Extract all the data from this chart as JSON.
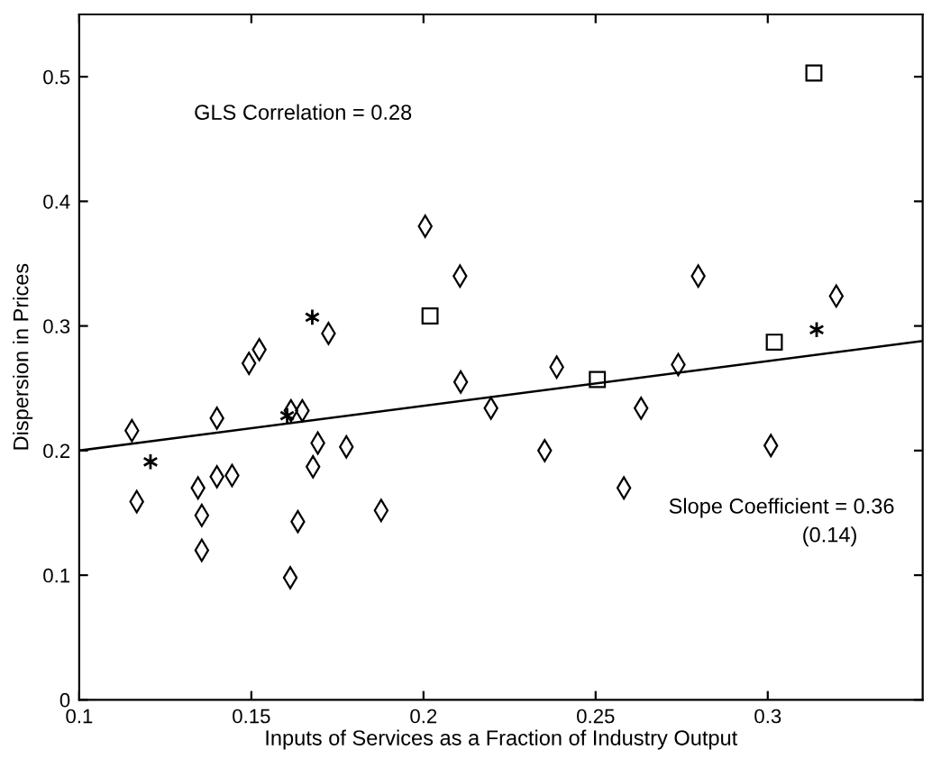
{
  "chart_data": {
    "type": "scatter",
    "xlabel": "Inputs of Services as a Fraction of Industry Output",
    "ylabel": "Dispersion in Prices",
    "xlim": [
      0.1,
      0.345
    ],
    "xticks": [
      0.1,
      0.15,
      0.2,
      0.25,
      0.3
    ],
    "ylim": [
      0,
      0.55
    ],
    "yticks": [
      0,
      0.1,
      0.2,
      0.3,
      0.4,
      0.5
    ],
    "grid": false,
    "legend": false,
    "annotations": [
      "GLS Correlation = 0.28",
      "Slope Coefficient = 0.36",
      "(0.14)"
    ],
    "series": [
      {
        "marker": "diamond",
        "color": "#000000",
        "x": [
          0.1153,
          0.1167,
          0.14,
          0.1345,
          0.1356,
          0.1356,
          0.14,
          0.1444,
          0.1493,
          0.1523,
          0.1615,
          0.1648,
          0.1693,
          0.1679,
          0.1635,
          0.1613,
          0.1724,
          0.1776,
          0.1877,
          0.2005,
          0.2106,
          0.2108,
          0.2196,
          0.2352,
          0.2387,
          0.2582,
          0.2632,
          0.274,
          0.2798,
          0.3009,
          0.3199
        ],
        "values": [
          0.216,
          0.159,
          0.226,
          0.17,
          0.148,
          0.12,
          0.179,
          0.18,
          0.27,
          0.281,
          0.232,
          0.232,
          0.206,
          0.187,
          0.143,
          0.098,
          0.294,
          0.203,
          0.152,
          0.38,
          0.34,
          0.255,
          0.234,
          0.2,
          0.267,
          0.17,
          0.234,
          0.269,
          0.34,
          0.204,
          0.324
        ]
      },
      {
        "marker": "square",
        "color": "#000000",
        "x": [
          0.2019,
          0.2505,
          0.3019,
          0.3134
        ],
        "values": [
          0.308,
          0.257,
          0.287,
          0.503
        ]
      },
      {
        "marker": "cross",
        "color": "#000000",
        "x": [
          0.1207,
          0.1604,
          0.1677,
          0.3142
        ],
        "values": [
          0.191,
          0.228,
          0.307,
          0.297
        ]
      },
      {
        "type": "line",
        "marker": "none",
        "line_style": "solid",
        "color": "#000000",
        "x": [
          0.1,
          0.345
        ],
        "values": [
          0.2,
          0.288
        ]
      }
    ]
  }
}
